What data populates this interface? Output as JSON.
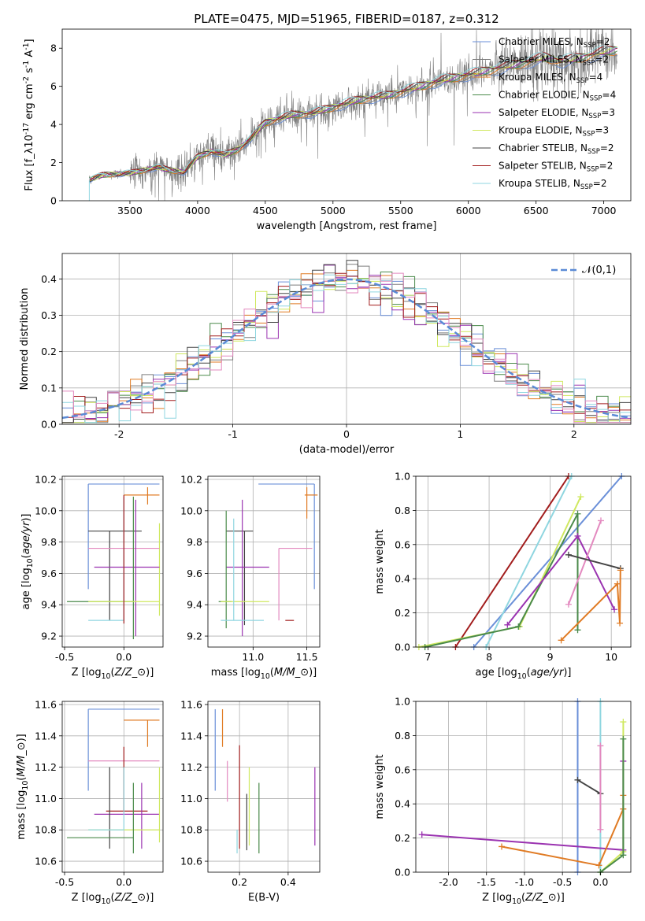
{
  "figure_title": "PLATE=0475, MJD=51965, FIBERID=0187, z=0.312",
  "colors": [
    "#6a8fd8",
    "#7d7d7d",
    "#e07b24",
    "#4a8a4a",
    "#9a32b0",
    "#cfe85f",
    "#444444",
    "#a21d1d",
    "#8fd6e0",
    "#e389bf"
  ],
  "chart_data": [
    {
      "id": "spectrum",
      "type": "line",
      "xlabel": "wavelength [Angstrom, rest frame]",
      "ylabel": "Flux [f$_\\lambda$10$^{-17}$ erg cm$^{-2}$ s$^{-1}$ A$^{-1}$]",
      "xlim": [
        3000,
        7200
      ],
      "ylim": [
        0,
        9
      ],
      "xticks": [
        3500,
        4000,
        4500,
        5000,
        5500,
        6000,
        6500,
        7000
      ],
      "yticks": [
        0,
        2,
        4,
        6,
        8
      ],
      "grid": false,
      "legend_position": "upper-right",
      "series": [
        {
          "name": "Chabrier MILES, N_SSP=2",
          "color_index": 0
        },
        {
          "name": "Salpeter MILES, N_SSP=2",
          "color_index": 1
        },
        {
          "name": "Kroupa MILES, N_SSP=4",
          "color_index": 2
        },
        {
          "name": "Chabrier ELODIE, N_SSP=4",
          "color_index": 3
        },
        {
          "name": "Salpeter ELODIE, N_SSP=3",
          "color_index": 4
        },
        {
          "name": "Kroupa ELODIE, N_SSP=3",
          "color_index": 5
        },
        {
          "name": "Chabrier STELIB, N_SSP=2",
          "color_index": 6
        },
        {
          "name": "Salpeter STELIB, N_SSP=2",
          "color_index": 7
        },
        {
          "name": "Kroupa STELIB, N_SSP=2",
          "color_index": 8
        }
      ],
      "model_envelope": {
        "x": [
          3200,
          3300,
          3400,
          3500,
          3700,
          3800,
          3900,
          4000,
          4100,
          4200,
          4300,
          4400,
          4500,
          4700,
          4860,
          5000,
          5200,
          5400,
          5600,
          5800,
          6000,
          6200,
          6400,
          6563,
          6700,
          6900,
          7000,
          7100
        ],
        "y": [
          1.1,
          1.35,
          1.4,
          1.45,
          1.75,
          1.6,
          1.5,
          2.3,
          2.6,
          2.4,
          2.7,
          3.3,
          4.1,
          4.5,
          4.6,
          4.9,
          5.3,
          5.5,
          5.9,
          6.3,
          6.6,
          6.9,
          7.2,
          7.5,
          7.3,
          7.6,
          7.8,
          7.9
        ]
      },
      "data_start": 3200,
      "data_noise_start": 3500
    },
    {
      "id": "residuals",
      "type": "bar",
      "xlabel": "(data-model)/error",
      "ylabel": "Normed distribution",
      "xlim": [
        -2.5,
        2.5
      ],
      "ylim": [
        0,
        0.47
      ],
      "xticks": [
        -2,
        -1,
        0,
        1,
        2
      ],
      "yticks": [
        0.0,
        0.1,
        0.2,
        0.3,
        0.4
      ],
      "grid": true,
      "legend": "$\\mathcal{N}(0,1)$",
      "legend_position": "upper-right",
      "bin_width": 0.1
    },
    {
      "id": "age_vs_Z",
      "type": "scatter",
      "xlabel": "Z [log$_{10}$($Z/Z_\\odot$)]",
      "ylabel": "age  [log$_{10}$($age/yr$)]",
      "xlim": [
        -0.52,
        0.33
      ],
      "ylim": [
        9.13,
        10.22
      ],
      "xticks": [
        -0.5,
        0.0,
        0.5
      ],
      "yticks": [
        9.2,
        9.4,
        9.6,
        9.8,
        10.0,
        10.2
      ],
      "grid": true,
      "points": [
        {
          "c": 0,
          "x": -0.3,
          "xmin": -0.3,
          "xmax": 0.3,
          "y": 10.17,
          "ymin": 9.5,
          "ymax": 10.17
        },
        {
          "c": 2,
          "x": 0.2,
          "xmin": 0.0,
          "xmax": 0.3,
          "y": 10.1,
          "ymin": 10.04,
          "ymax": 10.15
        },
        {
          "c": 5,
          "x": 0.3,
          "xmin": 0.3,
          "xmax": 0.3,
          "y": 9.92,
          "ymin": 9.33,
          "ymax": 9.92
        },
        {
          "c": 6,
          "x": -0.12,
          "xmin": -0.3,
          "xmax": 0.15,
          "y": 9.87,
          "ymin": 9.3,
          "ymax": 9.87
        },
        {
          "c": 9,
          "x": 0.0,
          "xmin": -0.3,
          "xmax": 0.3,
          "y": 9.76,
          "ymin": 9.3,
          "ymax": 10.09
        },
        {
          "c": 4,
          "x": 0.1,
          "xmin": -0.25,
          "xmax": 0.3,
          "y": 9.64,
          "ymin": 9.2,
          "ymax": 10.07
        },
        {
          "c": 3,
          "x": 0.08,
          "xmin": -0.48,
          "xmax": 0.08,
          "y": 9.42,
          "ymin": 9.18,
          "ymax": 10.09
        },
        {
          "c": 5,
          "x": -0.1,
          "xmin": -0.3,
          "xmax": 0.3,
          "y": 9.42,
          "ymin": 9.42,
          "ymax": 9.42
        },
        {
          "c": 8,
          "x": 0.0,
          "xmin": -0.3,
          "xmax": 0.0,
          "y": 9.3,
          "ymin": 9.3,
          "ymax": 10.08
        },
        {
          "c": 7,
          "x": 0.0,
          "xmin": 0.0,
          "xmax": 0.0,
          "y": 10.09,
          "ymin": 9.28,
          "ymax": 10.1
        }
      ]
    },
    {
      "id": "age_vs_mass",
      "type": "scatter",
      "xlabel": "mass [log$_{10}$($M/M_\\odot$)]",
      "ylabel": "",
      "xlim": [
        10.58,
        11.62
      ],
      "ylim": [
        9.13,
        10.22
      ],
      "xticks": [
        11.0,
        11.5
      ],
      "yticks": [
        9.2,
        9.4,
        9.6,
        9.8,
        10.0,
        10.2
      ],
      "grid": true,
      "points": [
        {
          "c": 0,
          "x": 11.57,
          "xmin": 11.05,
          "xmax": 11.57,
          "y": 10.17,
          "ymin": 9.5,
          "ymax": 10.17
        },
        {
          "c": 2,
          "x": 11.5,
          "xmin": 11.48,
          "xmax": 11.6,
          "y": 10.1,
          "ymin": 9.95,
          "ymax": 10.15
        },
        {
          "c": 6,
          "x": 10.92,
          "xmin": 10.75,
          "xmax": 11.0,
          "y": 9.87,
          "ymin": 9.27,
          "ymax": 9.87
        },
        {
          "c": 9,
          "x": 11.24,
          "xmin": 11.24,
          "xmax": 11.55,
          "y": 9.76,
          "ymin": 9.3,
          "ymax": 9.76
        },
        {
          "c": 4,
          "x": 10.9,
          "xmin": 10.75,
          "xmax": 11.15,
          "y": 9.64,
          "ymin": 9.2,
          "ymax": 10.07
        },
        {
          "c": 3,
          "x": 10.75,
          "xmin": 10.68,
          "xmax": 10.8,
          "y": 9.42,
          "ymin": 9.25,
          "ymax": 10.0
        },
        {
          "c": 5,
          "x": 10.8,
          "xmin": 10.7,
          "xmax": 11.15,
          "y": 9.42,
          "ymin": 9.42,
          "ymax": 9.42
        },
        {
          "c": 8,
          "x": 10.82,
          "xmin": 10.7,
          "xmax": 11.1,
          "y": 9.3,
          "ymin": 9.3,
          "ymax": 9.95
        },
        {
          "c": 7,
          "x": 11.3,
          "xmin": 11.3,
          "xmax": 11.38,
          "y": 9.3,
          "ymin": 9.3,
          "ymax": 9.3
        }
      ]
    },
    {
      "id": "massweight_vs_age",
      "type": "line",
      "xlabel": "age  [log$_{10}$($age/yr$)]",
      "ylabel": "mass weight",
      "xlim": [
        6.8,
        10.32
      ],
      "ylim": [
        0.0,
        1.0
      ],
      "xticks": [
        7,
        8,
        9,
        10
      ],
      "yticks": [
        0.0,
        0.2,
        0.4,
        0.6,
        0.8,
        1.0
      ],
      "grid": true,
      "series": [
        {
          "c": 0,
          "x": [
            7.75,
            10.17
          ],
          "y": [
            0.0,
            1.0
          ]
        },
        {
          "c": 7,
          "x": [
            7.45,
            9.3
          ],
          "y": [
            0.0,
            1.0
          ]
        },
        {
          "c": 8,
          "x": [
            7.95,
            9.35
          ],
          "y": [
            0.0,
            1.0
          ]
        },
        {
          "c": 5,
          "x": [
            6.85,
            8.5,
            9.5
          ],
          "y": [
            0.0,
            0.12,
            0.88
          ]
        },
        {
          "c": 3,
          "x": [
            6.95,
            8.48,
            9.45,
            9.45
          ],
          "y": [
            0.0,
            0.12,
            0.78,
            0.1
          ]
        },
        {
          "c": 4,
          "x": [
            8.3,
            9.45,
            10.05
          ],
          "y": [
            0.13,
            0.65,
            0.22
          ]
        },
        {
          "c": 9,
          "x": [
            9.3,
            9.83
          ],
          "y": [
            0.25,
            0.74
          ]
        },
        {
          "c": 6,
          "x": [
            9.3,
            10.15
          ],
          "y": [
            0.54,
            0.46
          ]
        },
        {
          "c": 2,
          "x": [
            9.18,
            10.1,
            10.14,
            10.15
          ],
          "y": [
            0.04,
            0.37,
            0.14,
            0.45
          ]
        }
      ]
    },
    {
      "id": "mass_vs_Z",
      "type": "scatter",
      "xlabel": "Z [log$_{10}$($Z/Z_\\odot$)]",
      "ylabel": "mass [log$_{10}$($M/M_\\odot$)]",
      "xlim": [
        -0.52,
        0.33
      ],
      "ylim": [
        10.53,
        11.62
      ],
      "xticks": [
        -0.5,
        0.0
      ],
      "yticks": [
        10.6,
        10.8,
        11.0,
        11.2,
        11.4,
        11.6
      ],
      "grid": true,
      "points": [
        {
          "c": 0,
          "x": -0.3,
          "xmin": -0.3,
          "xmax": 0.3,
          "y": 11.57,
          "ymin": 11.05,
          "ymax": 11.57
        },
        {
          "c": 2,
          "x": 0.2,
          "xmin": 0.0,
          "xmax": 0.3,
          "y": 11.5,
          "ymin": 11.33,
          "ymax": 11.5
        },
        {
          "c": 9,
          "x": 0.0,
          "xmin": -0.3,
          "xmax": 0.3,
          "y": 11.24,
          "ymin": 11.24,
          "ymax": 11.24
        },
        {
          "c": 7,
          "x": 0.0,
          "xmin": -0.15,
          "xmax": 0.2,
          "y": 10.92,
          "ymin": 10.92,
          "ymax": 11.33
        },
        {
          "c": 4,
          "x": 0.15,
          "xmin": -0.25,
          "xmax": 0.3,
          "y": 10.9,
          "ymin": 10.68,
          "ymax": 11.1
        },
        {
          "c": 6,
          "x": -0.12,
          "xmin": -0.12,
          "xmax": -0.12,
          "y": 10.92,
          "ymin": 10.68,
          "ymax": 11.2
        },
        {
          "c": 5,
          "x": 0.3,
          "xmin": -0.3,
          "xmax": 0.3,
          "y": 10.8,
          "ymin": 10.72,
          "ymax": 11.2
        },
        {
          "c": 3,
          "x": 0.08,
          "xmin": -0.48,
          "xmax": 0.08,
          "y": 10.75,
          "ymin": 10.65,
          "ymax": 11.1
        },
        {
          "c": 8,
          "x": 0.0,
          "xmin": -0.3,
          "xmax": 0.0,
          "y": 10.8,
          "ymin": 10.8,
          "ymax": 11.2
        }
      ]
    },
    {
      "id": "mass_vs_ebv",
      "type": "scatter",
      "xlabel": "E(B-V)",
      "ylabel": "",
      "xlim": [
        0.07,
        0.53
      ],
      "ylim": [
        10.53,
        11.62
      ],
      "xticks": [
        0.2,
        0.4
      ],
      "yticks": [
        10.6,
        10.8,
        11.0,
        11.2,
        11.4,
        11.6
      ],
      "grid": true,
      "points": [
        {
          "c": 0,
          "x": 0.1,
          "xmin": 0.1,
          "xmax": 0.1,
          "y": 11.57,
          "ymin": 11.05,
          "ymax": 11.57
        },
        {
          "c": 2,
          "x": 0.13,
          "xmin": 0.13,
          "xmax": 0.13,
          "y": 11.57,
          "ymin": 11.33,
          "ymax": 11.57
        },
        {
          "c": 9,
          "x": 0.15,
          "xmin": 0.15,
          "xmax": 0.15,
          "y": 11.24,
          "ymin": 10.98,
          "ymax": 11.24
        },
        {
          "c": 7,
          "x": 0.2,
          "xmin": 0.2,
          "xmax": 0.2,
          "y": 11.34,
          "ymin": 10.68,
          "ymax": 11.34
        },
        {
          "c": 8,
          "x": 0.19,
          "xmin": 0.19,
          "xmax": 0.19,
          "y": 10.8,
          "ymin": 10.65,
          "ymax": 10.8
        },
        {
          "c": 5,
          "x": 0.24,
          "xmin": 0.24,
          "xmax": 0.24,
          "y": 11.2,
          "ymin": 10.7,
          "ymax": 11.2
        },
        {
          "c": 6,
          "x": 0.23,
          "xmin": 0.23,
          "xmax": 0.23,
          "y": 11.03,
          "ymin": 10.67,
          "ymax": 11.03
        },
        {
          "c": 3,
          "x": 0.28,
          "xmin": 0.28,
          "xmax": 0.28,
          "y": 11.1,
          "ymin": 10.65,
          "ymax": 11.1
        },
        {
          "c": 4,
          "x": 0.51,
          "xmin": 0.51,
          "xmax": 0.51,
          "y": 11.2,
          "ymin": 10.7,
          "ymax": 11.2
        }
      ]
    },
    {
      "id": "massweight_vs_Z",
      "type": "line",
      "xlabel": "Z [log$_{10}$($Z/Z_\\odot$)]",
      "ylabel": "mass weight",
      "xlim": [
        -2.43,
        0.4
      ],
      "ylim": [
        0.0,
        1.0
      ],
      "xticks": [
        -2.0,
        -1.5,
        -1.0,
        -0.5,
        0.0
      ],
      "yticks": [
        0.0,
        0.2,
        0.4,
        0.6,
        0.8,
        1.0
      ],
      "grid": true,
      "series": [
        {
          "c": 0,
          "x": [
            -0.3,
            -0.3
          ],
          "y": [
            0.0,
            1.0
          ]
        },
        {
          "c": 8,
          "x": [
            0.0,
            0.0
          ],
          "y": [
            0.0,
            1.0
          ]
        },
        {
          "c": 4,
          "x": [
            -2.35,
            0.3,
            0.3
          ],
          "y": [
            0.22,
            0.13,
            0.65
          ]
        },
        {
          "c": 2,
          "x": [
            -1.3,
            -0.02,
            0.3,
            0.3
          ],
          "y": [
            0.15,
            0.04,
            0.37,
            0.45
          ]
        },
        {
          "c": 6,
          "x": [
            -0.3,
            0.0
          ],
          "y": [
            0.54,
            0.46
          ]
        },
        {
          "c": 5,
          "x": [
            0.0,
            0.3,
            0.3
          ],
          "y": [
            0.0,
            0.12,
            0.88
          ]
        },
        {
          "c": 3,
          "x": [
            0.0,
            0.3,
            0.3
          ],
          "y": [
            0.0,
            0.1,
            0.78
          ]
        },
        {
          "c": 9,
          "x": [
            0.0,
            0.0
          ],
          "y": [
            0.25,
            0.74
          ]
        }
      ]
    }
  ]
}
